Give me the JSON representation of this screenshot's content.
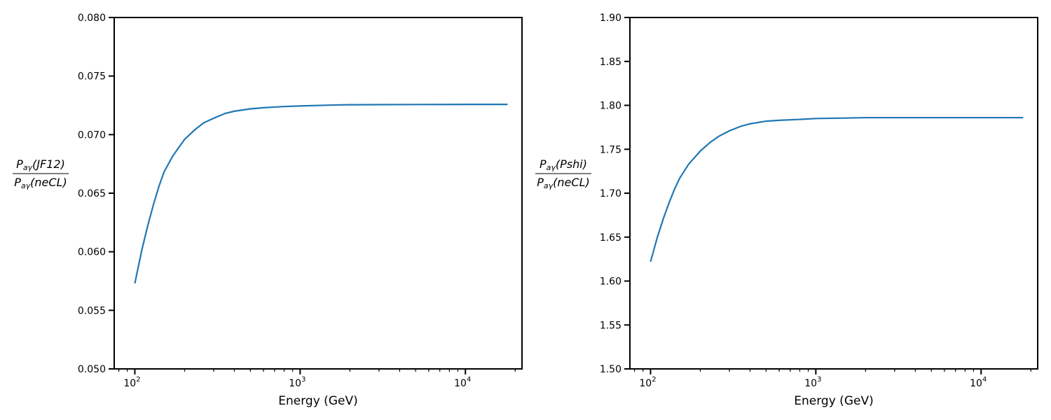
{
  "chart_data": [
    {
      "type": "line",
      "xlabel": "Energy (GeV)",
      "ylabel": {
        "numerator_pre": "P",
        "numerator_sub": "aγ",
        "numerator_post": "(JF12)",
        "denominator_pre": "P",
        "denominator_sub": "aγ",
        "denominator_post": "(neCL)"
      },
      "xscale": "log",
      "xlim": [
        75,
        22000
      ],
      "ylim": [
        0.05,
        0.08
      ],
      "yticks": [
        "0.050",
        "0.055",
        "0.060",
        "0.065",
        "0.070",
        "0.075",
        "0.080"
      ],
      "xticks": [
        {
          "base": "10",
          "exp": "2"
        },
        {
          "base": "10",
          "exp": "3"
        },
        {
          "base": "10",
          "exp": "4"
        }
      ],
      "color": "#1f77b4",
      "series": [
        {
          "x": [
            100,
            110,
            120,
            130,
            140,
            150,
            170,
            200,
            230,
            260,
            300,
            350,
            400,
            500,
            600,
            800,
            1000,
            1500,
            2000,
            3000,
            5000,
            10000,
            18000
          ],
          "y": [
            0.0573,
            0.0601,
            0.0623,
            0.0641,
            0.0656,
            0.0668,
            0.0682,
            0.0696,
            0.0704,
            0.071,
            0.0714,
            0.0718,
            0.072,
            0.0722,
            0.0723,
            0.0724,
            0.07245,
            0.07252,
            0.07255,
            0.07256,
            0.07257,
            0.07258,
            0.07258
          ]
        }
      ]
    },
    {
      "type": "line",
      "xlabel": "Energy (GeV)",
      "ylabel": {
        "numerator_pre": "P",
        "numerator_sub": "aγ",
        "numerator_post": "(Pshi)",
        "denominator_pre": "P",
        "denominator_sub": "aγ",
        "denominator_post": "(neCL)"
      },
      "xscale": "log",
      "xlim": [
        75,
        22000
      ],
      "ylim": [
        1.5,
        1.9
      ],
      "yticks": [
        "1.50",
        "1.55",
        "1.60",
        "1.65",
        "1.70",
        "1.75",
        "1.80",
        "1.85",
        "1.90"
      ],
      "xticks": [
        {
          "base": "10",
          "exp": "2"
        },
        {
          "base": "10",
          "exp": "3"
        },
        {
          "base": "10",
          "exp": "4"
        }
      ],
      "color": "#1f77b4",
      "series": [
        {
          "x": [
            100,
            110,
            120,
            130,
            140,
            150,
            170,
            200,
            230,
            260,
            300,
            350,
            400,
            500,
            600,
            800,
            1000,
            1500,
            2000,
            3000,
            5000,
            10000,
            18000
          ],
          "y": [
            1.622,
            1.65,
            1.672,
            1.69,
            1.705,
            1.717,
            1.733,
            1.748,
            1.758,
            1.765,
            1.771,
            1.776,
            1.779,
            1.782,
            1.783,
            1.784,
            1.785,
            1.7855,
            1.786,
            1.786,
            1.786,
            1.786,
            1.786
          ]
        }
      ]
    }
  ]
}
